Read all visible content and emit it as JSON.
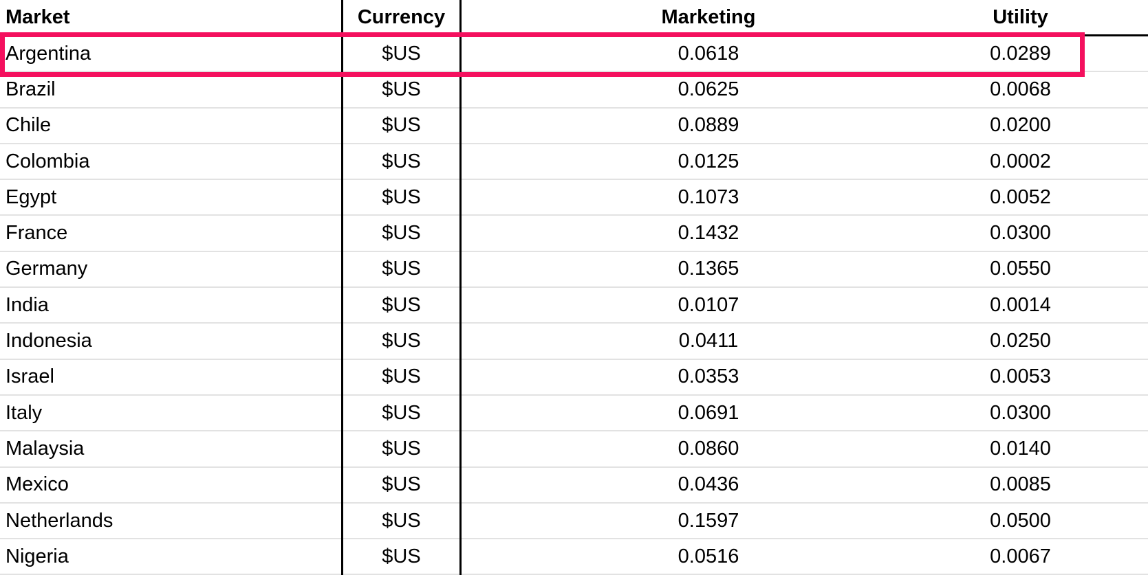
{
  "table": {
    "columns": [
      {
        "key": "market",
        "label": "Market",
        "align": "left"
      },
      {
        "key": "currency",
        "label": "Currency",
        "align": "center"
      },
      {
        "key": "marketing",
        "label": "Marketing",
        "align": "center"
      },
      {
        "key": "utility",
        "label": "Utility",
        "align": "center"
      }
    ],
    "rows": [
      {
        "market": "Argentina",
        "currency": "$US",
        "marketing": "0.0618",
        "utility": "0.0289",
        "highlighted": true
      },
      {
        "market": "Brazil",
        "currency": "$US",
        "marketing": "0.0625",
        "utility": "0.0068",
        "highlighted": false
      },
      {
        "market": "Chile",
        "currency": "$US",
        "marketing": "0.0889",
        "utility": "0.0200",
        "highlighted": false
      },
      {
        "market": "Colombia",
        "currency": "$US",
        "marketing": "0.0125",
        "utility": "0.0002",
        "highlighted": false
      },
      {
        "market": "Egypt",
        "currency": "$US",
        "marketing": "0.1073",
        "utility": "0.0052",
        "highlighted": false
      },
      {
        "market": "France",
        "currency": "$US",
        "marketing": "0.1432",
        "utility": "0.0300",
        "highlighted": false
      },
      {
        "market": "Germany",
        "currency": "$US",
        "marketing": "0.1365",
        "utility": "0.0550",
        "highlighted": false
      },
      {
        "market": "India",
        "currency": "$US",
        "marketing": "0.0107",
        "utility": "0.0014",
        "highlighted": false
      },
      {
        "market": "Indonesia",
        "currency": "$US",
        "marketing": "0.0411",
        "utility": "0.0250",
        "highlighted": false
      },
      {
        "market": "Israel",
        "currency": "$US",
        "marketing": "0.0353",
        "utility": "0.0053",
        "highlighted": false
      },
      {
        "market": "Italy",
        "currency": "$US",
        "marketing": "0.0691",
        "utility": "0.0300",
        "highlighted": false
      },
      {
        "market": "Malaysia",
        "currency": "$US",
        "marketing": "0.0860",
        "utility": "0.0140",
        "highlighted": false
      },
      {
        "market": "Mexico",
        "currency": "$US",
        "marketing": "0.0436",
        "utility": "0.0085",
        "highlighted": false
      },
      {
        "market": "Netherlands",
        "currency": "$US",
        "marketing": "0.1597",
        "utility": "0.0500",
        "highlighted": false
      },
      {
        "market": "Nigeria",
        "currency": "$US",
        "marketing": "0.0516",
        "utility": "0.0067",
        "highlighted": false
      }
    ]
  },
  "highlight": {
    "row": "Argentina",
    "color": "#F4105E"
  },
  "colors": {
    "highlight": "#F4105E",
    "table_border": "#000000",
    "grid_line": "#E2E2E2",
    "background": "#FFFFFF",
    "text": "#000000"
  }
}
